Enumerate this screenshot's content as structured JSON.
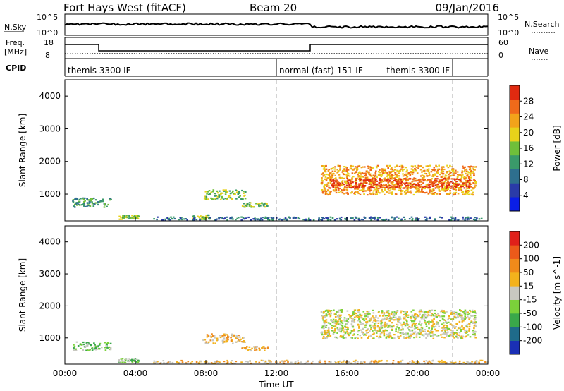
{
  "header": {
    "station": "Fort Hays West (fitACF)",
    "beam": "Beam 20",
    "date": "09/Jan/2016"
  },
  "top_panels": {
    "nsky_label": "N.Sky",
    "nsky_ticks": [
      "10^5",
      "10^0"
    ],
    "nsearch_label": "N.Search",
    "nsearch_ticks": [
      "10^5",
      "10^0"
    ],
    "freq_label_1": "Freq.",
    "freq_label_2": "[MHz]",
    "freq_ticks": [
      "18",
      "8"
    ],
    "nave_label": "Nave",
    "nave_ticks": [
      "60",
      "0"
    ],
    "cpid_label": "CPID",
    "cpid_segments": [
      {
        "label": "themis 3300 IF",
        "start_hour": 0,
        "end_hour": 12
      },
      {
        "label": "normal (fast) 151 IF",
        "start_hour": 12,
        "end_hour": 22
      },
      {
        "label": "themis 3300 IF",
        "start_hour": 22,
        "end_hour": 24
      }
    ]
  },
  "x_axis": {
    "label": "Time UT",
    "ticks": [
      "00:00",
      "04:00",
      "08:00",
      "12:00",
      "16:00",
      "20:00",
      "00:00"
    ]
  },
  "chart_data": [
    {
      "type": "heatmap",
      "title": "",
      "xlabel": "Time UT",
      "ylabel": "Slant Range [km]",
      "xlim_hours": [
        0,
        24
      ],
      "ylim_km": [
        180,
        4500
      ],
      "yticks": [
        1000,
        2000,
        3000,
        4000
      ],
      "colorbar_label": "Power [dB]",
      "colorbar_ticks": [
        "28",
        "24",
        "20",
        "16",
        "12",
        "8",
        "4"
      ],
      "colorbar_colors": [
        "#0a1ee6",
        "#2a3ba8",
        "#2e6f8e",
        "#3a9a6a",
        "#6fbf3a",
        "#e8d21a",
        "#f2a31a",
        "#ef6a1a",
        "#e02a10"
      ],
      "echo_regions": [
        {
          "t0": 0.4,
          "t1": 2.6,
          "r0": 620,
          "r1": 900,
          "level": 3
        },
        {
          "t0": 3.0,
          "t1": 4.2,
          "r0": 250,
          "r1": 380,
          "level": 4
        },
        {
          "t0": 7.2,
          "t1": 8.2,
          "r0": 250,
          "r1": 380,
          "level": 4
        },
        {
          "t0": 7.8,
          "t1": 10.2,
          "r0": 850,
          "r1": 1150,
          "level": 4
        },
        {
          "t0": 10.0,
          "t1": 11.5,
          "r0": 620,
          "r1": 760,
          "level": 4
        },
        {
          "t0": 5.0,
          "t1": 24.0,
          "r0": 220,
          "r1": 320,
          "level": 2
        },
        {
          "t0": 14.5,
          "t1": 23.3,
          "r0": 1000,
          "r1": 1900,
          "level": 6
        },
        {
          "t0": 15.0,
          "t1": 23.0,
          "r0": 1200,
          "r1": 1500,
          "level": 8
        }
      ]
    },
    {
      "type": "heatmap",
      "title": "",
      "xlabel": "Time UT",
      "ylabel": "Slant Range [km]",
      "xlim_hours": [
        0,
        24
      ],
      "ylim_km": [
        180,
        4500
      ],
      "yticks": [
        1000,
        2000,
        3000,
        4000
      ],
      "colorbar_label": "Velocity [m s^-1]",
      "colorbar_ticks": [
        "200",
        "100",
        "50",
        "15",
        "-15",
        "-50",
        "-100",
        "-200"
      ],
      "colorbar_colors": [
        "#1a2fb5",
        "#1f6b8a",
        "#3aa84a",
        "#7bd13a",
        "#c8c8c0",
        "#f3b21c",
        "#f08a1a",
        "#ec5a1a",
        "#e0201a"
      ],
      "echo_regions": [
        {
          "t0": 0.4,
          "t1": 2.6,
          "r0": 620,
          "r1": 900,
          "level": 3
        },
        {
          "t0": 3.0,
          "t1": 4.2,
          "r0": 250,
          "r1": 380,
          "level": 3
        },
        {
          "t0": 7.8,
          "t1": 10.2,
          "r0": 850,
          "r1": 1150,
          "level": 5
        },
        {
          "t0": 10.0,
          "t1": 11.5,
          "r0": 620,
          "r1": 760,
          "level": 5
        },
        {
          "t0": 5.0,
          "t1": 24.0,
          "r0": 220,
          "r1": 320,
          "level": 5
        },
        {
          "t0": 14.5,
          "t1": 23.3,
          "r0": 1000,
          "r1": 1900,
          "level": 4
        }
      ]
    }
  ]
}
